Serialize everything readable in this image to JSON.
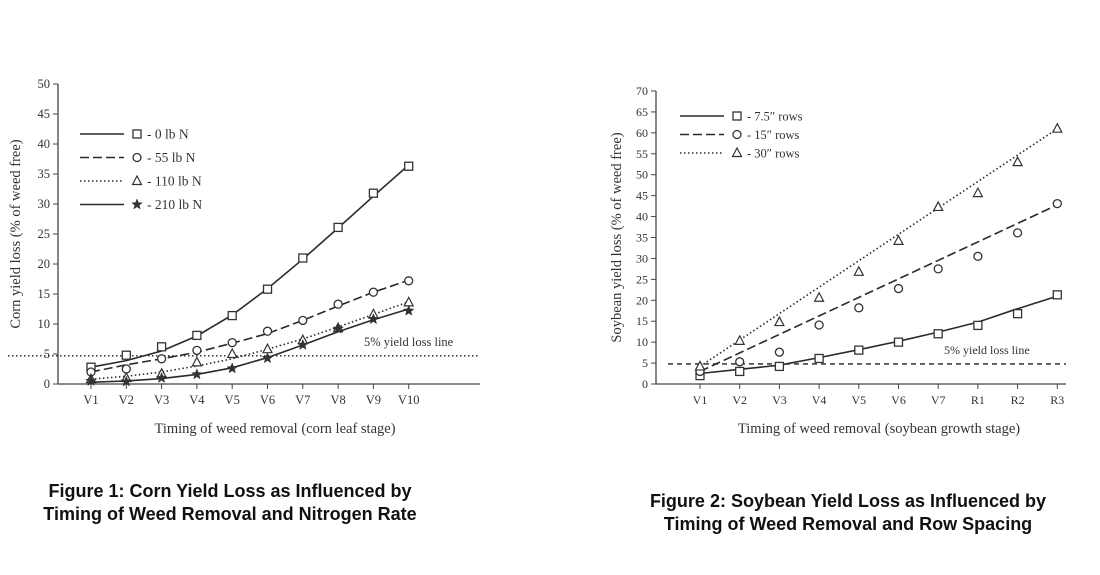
{
  "chart_data": [
    {
      "type": "line",
      "caption": "Figure 1: Corn Yield Loss as Influenced by Timing of Weed Removal and Nitrogen Rate",
      "xlabel": "Timing of weed removal (corn leaf stage)",
      "ylabel": "Corn yield loss (% of weed free)",
      "categories": [
        "V1",
        "V2",
        "V3",
        "V4",
        "V5",
        "V6",
        "V7",
        "V8",
        "V9",
        "V10"
      ],
      "ylim": [
        0,
        50
      ],
      "yticks": [
        0,
        5,
        10,
        15,
        20,
        25,
        30,
        35,
        40,
        45,
        50
      ],
      "grid": false,
      "legend_position": "top-left",
      "series": [
        {
          "name": "- 0 lb N",
          "marker": "square",
          "dash": "solid",
          "points": [
            [
              0,
              2.8
            ],
            [
              1,
              4.8
            ],
            [
              2,
              6.2
            ],
            [
              3,
              8.1
            ],
            [
              4,
              11.4
            ],
            [
              5,
              15.8
            ],
            [
              6,
              21.0
            ],
            [
              7,
              26.1
            ],
            [
              8,
              31.8
            ],
            [
              9,
              36.3
            ]
          ],
          "fit": [
            [
              0,
              2.8
            ],
            [
              1,
              3.9
            ],
            [
              2,
              5.5
            ],
            [
              3,
              8.0
            ],
            [
              4,
              11.5
            ],
            [
              5,
              15.9
            ],
            [
              6,
              20.8
            ],
            [
              7,
              26.0
            ],
            [
              8,
              31.3
            ],
            [
              9,
              36.5
            ]
          ]
        },
        {
          "name": "- 55 lb N",
          "marker": "circle",
          "dash": "longdash",
          "points": [
            [
              0,
              2.0
            ],
            [
              1,
              2.5
            ],
            [
              2,
              4.2
            ],
            [
              3,
              5.6
            ],
            [
              4,
              6.9
            ],
            [
              5,
              8.8
            ],
            [
              6,
              10.6
            ],
            [
              7,
              13.3
            ],
            [
              8,
              15.3
            ],
            [
              9,
              17.2
            ]
          ],
          "fit": [
            [
              0,
              2.0
            ],
            [
              1,
              3.2
            ],
            [
              2,
              4.2
            ],
            [
              3,
              5.3
            ],
            [
              4,
              6.8
            ],
            [
              5,
              8.4
            ],
            [
              6,
              10.6
            ],
            [
              7,
              13.0
            ],
            [
              8,
              15.3
            ],
            [
              9,
              17.3
            ]
          ]
        },
        {
          "name": "- 110 lb N",
          "marker": "triangle",
          "dash": "dotted",
          "points": [
            [
              0,
              0.8
            ],
            [
              1,
              1.0
            ],
            [
              2,
              1.7
            ],
            [
              3,
              3.6
            ],
            [
              4,
              5.0
            ],
            [
              5,
              5.8
            ],
            [
              6,
              7.3
            ],
            [
              7,
              9.3
            ],
            [
              8,
              11.6
            ],
            [
              9,
              13.6
            ]
          ],
          "fit": [
            [
              0,
              0.8
            ],
            [
              1,
              1.3
            ],
            [
              2,
              2.0
            ],
            [
              3,
              3.0
            ],
            [
              4,
              4.2
            ],
            [
              5,
              5.8
            ],
            [
              6,
              7.5
            ],
            [
              7,
              9.5
            ],
            [
              8,
              11.6
            ],
            [
              9,
              13.7
            ]
          ]
        },
        {
          "name": "- 210 lb N",
          "marker": "star",
          "dash": "solid",
          "points": [
            [
              0,
              0.5
            ],
            [
              1,
              0.4
            ],
            [
              2,
              1.0
            ],
            [
              3,
              1.6
            ],
            [
              4,
              2.6
            ],
            [
              5,
              4.3
            ],
            [
              6,
              6.5
            ],
            [
              7,
              9.2
            ],
            [
              8,
              10.8
            ],
            [
              9,
              12.2
            ]
          ],
          "fit": [
            [
              0,
              0.3
            ],
            [
              1,
              0.5
            ],
            [
              2,
              0.9
            ],
            [
              3,
              1.6
            ],
            [
              4,
              2.7
            ],
            [
              5,
              4.4
            ],
            [
              6,
              6.5
            ],
            [
              7,
              8.7
            ],
            [
              8,
              10.7
            ],
            [
              9,
              12.5
            ]
          ]
        }
      ],
      "reference_line": {
        "y": 4.7,
        "label": "5% yield loss line",
        "style": "dotted"
      }
    },
    {
      "type": "line",
      "caption": "Figure 2: Soybean Yield Loss as Influenced by Timing of Weed Removal and Row Spacing",
      "xlabel": "Timing of weed removal (soybean growth stage)",
      "ylabel": "Soybean yield loss (% of weed free)",
      "categories": [
        "V1",
        "V2",
        "V3",
        "V4",
        "V5",
        "V6",
        "V7",
        "R1",
        "R2",
        "R3"
      ],
      "ylim": [
        0,
        70
      ],
      "yticks": [
        0,
        5,
        10,
        15,
        20,
        25,
        30,
        35,
        40,
        45,
        50,
        55,
        60,
        65,
        70
      ],
      "grid": false,
      "legend_position": "top-left",
      "series": [
        {
          "name": "- 7.5″ rows",
          "marker": "square",
          "dash": "solid",
          "points": [
            [
              0,
              2.0
            ],
            [
              1,
              3.0
            ],
            [
              2,
              4.2
            ],
            [
              3,
              6.1
            ],
            [
              4,
              8.1
            ],
            [
              5,
              10.0
            ],
            [
              6,
              12.0
            ],
            [
              7,
              14.0
            ],
            [
              8,
              16.8
            ],
            [
              9,
              21.3
            ]
          ],
          "fit": [
            [
              0,
              2.5
            ],
            [
              1,
              3.5
            ],
            [
              2,
              4.5
            ],
            [
              3,
              6.3
            ],
            [
              4,
              8.2
            ],
            [
              5,
              10.2
            ],
            [
              6,
              12.4
            ],
            [
              7,
              14.8
            ],
            [
              8,
              18.0
            ],
            [
              9,
              21.0
            ]
          ]
        },
        {
          "name": "- 15″ rows",
          "marker": "circle",
          "dash": "longdash",
          "points": [
            [
              0,
              3.0
            ],
            [
              1,
              5.3
            ],
            [
              2,
              7.6
            ],
            [
              3,
              14.1
            ],
            [
              4,
              18.2
            ],
            [
              5,
              22.8
            ],
            [
              6,
              27.5
            ],
            [
              7,
              30.5
            ],
            [
              8,
              36.1
            ],
            [
              9,
              43.1
            ]
          ],
          "fit": [
            [
              0,
              3.0
            ],
            [
              9,
              42.8
            ]
          ]
        },
        {
          "name": "- 30″ rows",
          "marker": "triangle",
          "dash": "dotted",
          "points": [
            [
              0,
              4.2
            ],
            [
              1,
              10.3
            ],
            [
              2,
              14.8
            ],
            [
              3,
              20.6
            ],
            [
              4,
              26.8
            ],
            [
              5,
              34.2
            ],
            [
              6,
              42.3
            ],
            [
              7,
              45.6
            ],
            [
              8,
              53.0
            ],
            [
              9,
              61.0
            ]
          ],
          "fit": [
            [
              0,
              4.2
            ],
            [
              9,
              61.0
            ]
          ]
        }
      ],
      "reference_line": {
        "y": 4.8,
        "label": "5% yield loss line",
        "style": "dashed"
      }
    }
  ]
}
